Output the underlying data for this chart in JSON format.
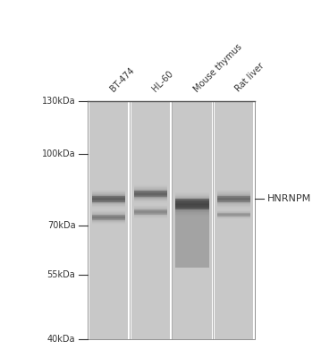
{
  "bg_color": "#f0f0f0",
  "lane_bg_color": "#d8d8d8",
  "num_lanes": 4,
  "lane_labels": [
    "BT-474",
    "HL-60",
    "Mouse thymus",
    "Rat liver"
  ],
  "mw_markers": [
    130,
    100,
    70,
    55,
    40
  ],
  "mw_labels": [
    "130kDa",
    "100kDa",
    "70kDa",
    "55kDa",
    "40kDa"
  ],
  "protein_label": "HNRNPM",
  "figure_bg": "#ffffff",
  "lane_color": "#c8c8c8",
  "band_color_main": "#404040",
  "band_color_light": "#909090"
}
